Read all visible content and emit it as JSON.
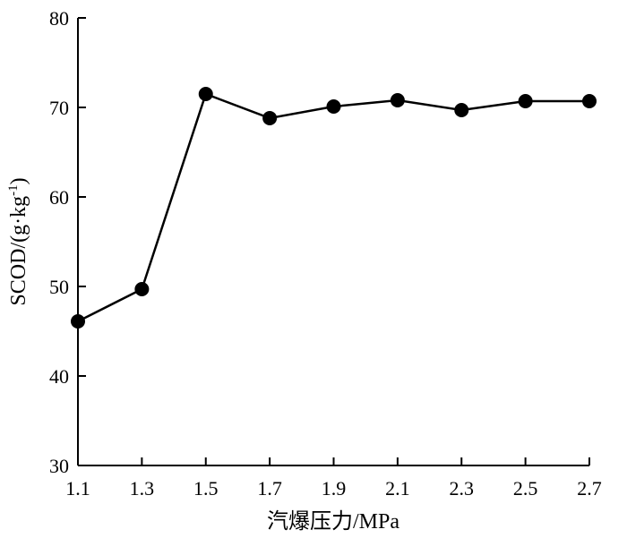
{
  "chart_data": {
    "type": "line",
    "x": [
      1.1,
      1.3,
      1.5,
      1.7,
      1.9,
      2.1,
      2.3,
      2.5,
      2.7
    ],
    "series": [
      {
        "values": [
          46.1,
          49.7,
          71.5,
          68.8,
          70.1,
          70.8,
          69.7,
          70.7,
          70.7
        ]
      }
    ],
    "xlabel": "汽爆压力/MPa",
    "ylabel_main": "SCOD/(g·kg",
    "ylabel_sup": "-1",
    "ylabel_close": ")",
    "xlim": [
      1.1,
      2.7
    ],
    "ylim": [
      30,
      80
    ],
    "x_ticks": [
      "1.1",
      "1.3",
      "1.5",
      "1.7",
      "1.9",
      "2.1",
      "2.3",
      "2.5",
      "2.7"
    ],
    "y_ticks": [
      "30",
      "40",
      "50",
      "60",
      "70",
      "80"
    ],
    "grid": false,
    "marker": "filled-circle",
    "line_color": "#000000"
  }
}
